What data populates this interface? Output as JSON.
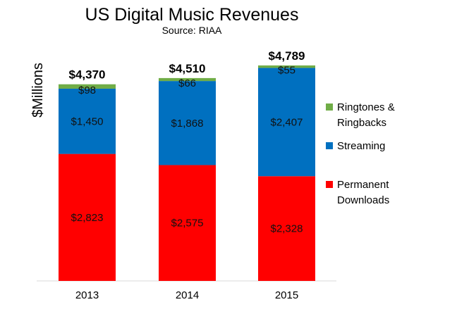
{
  "chart_data": {
    "type": "bar",
    "stacked": true,
    "title": "US Digital Music Revenues",
    "subtitle": "Source: RIAA",
    "xlabel": "",
    "ylabel": "$Millions",
    "ylim": [
      0,
      4789
    ],
    "grid": false,
    "legend_position": "right",
    "categories": [
      "2013",
      "2014",
      "2015"
    ],
    "series": [
      {
        "name": "Permanent Downloads",
        "legend_lines": [
          "Permanent",
          "Downloads"
        ],
        "color": "#ff0000",
        "values": [
          2823,
          2575,
          2328
        ],
        "labels": [
          "$2,823",
          "$2,575",
          "$2,328"
        ]
      },
      {
        "name": "Streaming",
        "legend_lines": [
          "Streaming"
        ],
        "color": "#0070c0",
        "values": [
          1450,
          1868,
          2407
        ],
        "labels": [
          "$1,450",
          "$1,868",
          "$2,407"
        ]
      },
      {
        "name": "Ringtones & Ringbacks",
        "legend_lines": [
          "Ringtones &",
          "Ringbacks"
        ],
        "color": "#70ad47",
        "values": [
          98,
          66,
          55
        ],
        "labels": [
          "$98",
          "$66",
          "$55"
        ]
      }
    ],
    "totals": [
      4370,
      4510,
      4789
    ],
    "total_labels": [
      "$4,370",
      "$4,510",
      "$4,789"
    ]
  }
}
